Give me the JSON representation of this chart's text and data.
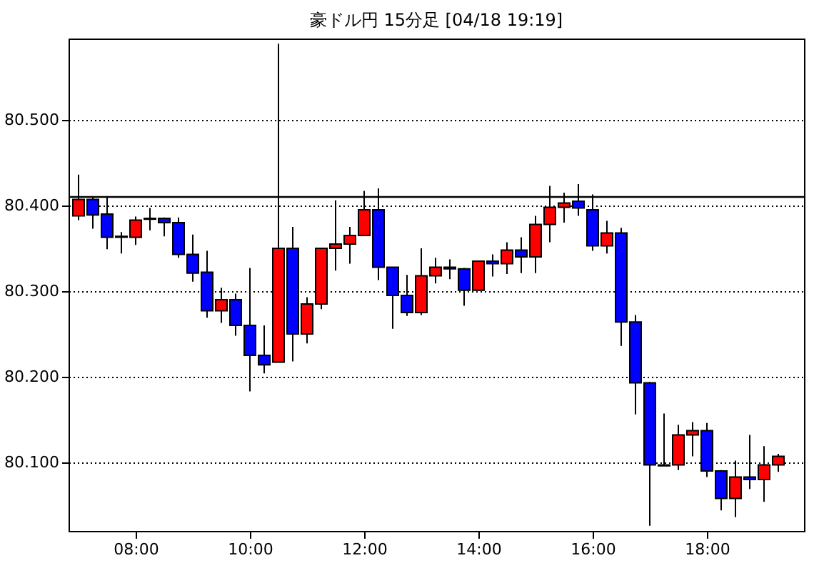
{
  "chart_data": {
    "type": "candlestick",
    "title": "豪ドル円 15分足 [04/18 19:19]",
    "x": [
      7,
      7.25,
      7.5,
      7.75,
      8,
      8.25,
      8.5,
      8.75,
      9,
      9.25,
      9.5,
      9.75,
      10,
      10.25,
      10.5,
      10.75,
      11,
      11.25,
      11.5,
      11.75,
      12,
      12.25,
      12.5,
      12.75,
      13,
      13.25,
      13.5,
      13.75,
      14,
      14.25,
      14.5,
      14.75,
      15,
      15.25,
      15.5,
      15.75,
      16,
      16.25,
      16.5,
      16.75,
      17,
      17.25,
      17.5,
      17.75,
      18,
      18.25,
      18.5,
      18.75,
      19,
      19.25
    ],
    "ohlc": [
      [
        80.388,
        80.436,
        80.383,
        80.407
      ],
      [
        80.407,
        80.41,
        80.373,
        80.389
      ],
      [
        80.39,
        80.41,
        80.349,
        80.363
      ],
      [
        80.364,
        80.369,
        80.344,
        80.363
      ],
      [
        80.363,
        80.387,
        80.354,
        80.383
      ],
      [
        80.384,
        80.397,
        80.371,
        80.385
      ],
      [
        80.385,
        80.386,
        80.364,
        80.38
      ],
      [
        80.38,
        80.386,
        80.339,
        80.343
      ],
      [
        80.343,
        80.366,
        80.311,
        80.321
      ],
      [
        80.322,
        80.347,
        80.269,
        80.277
      ],
      [
        80.277,
        80.304,
        80.263,
        80.29
      ],
      [
        80.29,
        80.297,
        80.248,
        80.26
      ],
      [
        80.26,
        80.327,
        80.183,
        80.225
      ],
      [
        80.225,
        80.26,
        80.204,
        80.214
      ],
      [
        80.217,
        80.589,
        80.217,
        80.35
      ],
      [
        80.35,
        80.375,
        80.218,
        80.25
      ],
      [
        80.25,
        80.293,
        80.239,
        80.285
      ],
      [
        80.285,
        80.35,
        80.279,
        80.35
      ],
      [
        80.35,
        80.406,
        80.324,
        80.355
      ],
      [
        80.355,
        80.375,
        80.332,
        80.365
      ],
      [
        80.365,
        80.417,
        80.365,
        80.395
      ],
      [
        80.395,
        80.42,
        80.313,
        80.328
      ],
      [
        80.328,
        80.328,
        80.256,
        80.295
      ],
      [
        80.295,
        80.319,
        80.271,
        80.275
      ],
      [
        80.275,
        80.35,
        80.272,
        80.318
      ],
      [
        80.318,
        80.339,
        80.309,
        80.328
      ],
      [
        80.328,
        80.337,
        80.314,
        80.326
      ],
      [
        80.326,
        80.327,
        80.283,
        80.301
      ],
      [
        80.301,
        80.335,
        80.301,
        80.335
      ],
      [
        80.335,
        80.343,
        80.317,
        80.332
      ],
      [
        80.332,
        80.357,
        80.32,
        80.348
      ],
      [
        80.348,
        80.363,
        80.321,
        80.34
      ],
      [
        80.34,
        80.388,
        80.321,
        80.378
      ],
      [
        80.378,
        80.423,
        80.357,
        80.398
      ],
      [
        80.398,
        80.415,
        80.38,
        80.403
      ],
      [
        80.405,
        80.425,
        80.388,
        80.397
      ],
      [
        80.395,
        80.413,
        80.347,
        80.353
      ],
      [
        80.353,
        80.382,
        80.344,
        80.368
      ],
      [
        80.368,
        80.374,
        80.236,
        80.264
      ],
      [
        80.264,
        80.272,
        80.156,
        80.193
      ],
      [
        80.193,
        80.194,
        80.026,
        80.097
      ],
      [
        80.097,
        80.157,
        80.096,
        80.096
      ],
      [
        80.097,
        80.144,
        80.091,
        80.132
      ],
      [
        80.132,
        80.147,
        80.107,
        80.137
      ],
      [
        80.137,
        80.146,
        80.083,
        80.09
      ],
      [
        80.09,
        80.091,
        80.044,
        80.058
      ],
      [
        80.058,
        80.102,
        80.036,
        80.083
      ],
      [
        80.083,
        80.132,
        80.069,
        80.08
      ],
      [
        80.08,
        80.119,
        80.054,
        80.097
      ],
      [
        80.097,
        80.11,
        80.089,
        80.107
      ]
    ],
    "colors": [
      "#ff0000",
      "#0000ff",
      "#0000ff",
      "#0000ff",
      "#ff0000",
      "#ff0000",
      "#0000ff",
      "#0000ff",
      "#0000ff",
      "#0000ff",
      "#ff0000",
      "#0000ff",
      "#0000ff",
      "#0000ff",
      "#ff0000",
      "#0000ff",
      "#ff0000",
      "#ff0000",
      "#ff0000",
      "#ff0000",
      "#ff0000",
      "#0000ff",
      "#0000ff",
      "#0000ff",
      "#ff0000",
      "#ff0000",
      "#0000ff",
      "#0000ff",
      "#ff0000",
      "#0000ff",
      "#ff0000",
      "#0000ff",
      "#ff0000",
      "#ff0000",
      "#ff0000",
      "#0000ff",
      "#0000ff",
      "#ff0000",
      "#0000ff",
      "#0000ff",
      "#0000ff",
      "#0000ff",
      "#ff0000",
      "#ff0000",
      "#0000ff",
      "#0000ff",
      "#ff0000",
      "#0000ff",
      "#ff0000",
      "#ff0000"
    ],
    "xlim": [
      6.825,
      19.7
    ],
    "xticks": [
      {
        "value": 8,
        "label": "08:00"
      },
      {
        "value": 10,
        "label": "10:00"
      },
      {
        "value": 12,
        "label": "12:00"
      },
      {
        "value": 14,
        "label": "14:00"
      },
      {
        "value": 16,
        "label": "16:00"
      },
      {
        "value": 18,
        "label": "18:00"
      }
    ],
    "ylim": [
      80.02,
      80.595
    ],
    "yticks": [
      {
        "value": 80.1,
        "label": "80.100"
      },
      {
        "value": 80.2,
        "label": "80.200"
      },
      {
        "value": 80.3,
        "label": "80.300"
      },
      {
        "value": 80.4,
        "label": "80.400"
      },
      {
        "value": 80.5,
        "label": "80.500"
      }
    ],
    "grid": "y",
    "ref_lines": [
      {
        "axis": "y",
        "value": 80.41,
        "color": "#000000"
      }
    ]
  }
}
